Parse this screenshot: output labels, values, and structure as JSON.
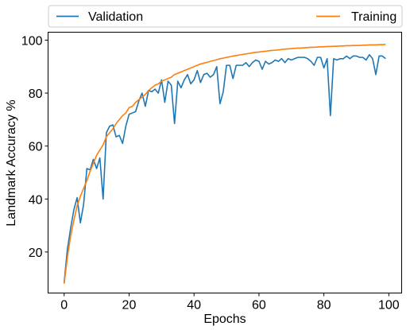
{
  "chart_data": {
    "type": "line",
    "title": "",
    "xlabel": "Epochs",
    "ylabel": "Landmark Accuracy %",
    "xlim": [
      -4.95,
      103.95
    ],
    "ylim": [
      4.5,
      103.0
    ],
    "xticks": [
      0,
      20,
      40,
      60,
      80,
      100
    ],
    "yticks": [
      20,
      40,
      60,
      80,
      100
    ],
    "grid": false,
    "legend": {
      "placement": "top, above plot",
      "entries": [
        "Validation",
        "Training"
      ]
    },
    "series": [
      {
        "name": "Validation",
        "color": "#1f77b4",
        "x": [
          0,
          1,
          2,
          3,
          4,
          5,
          6,
          7,
          8,
          9,
          10,
          11,
          12,
          13,
          14,
          15,
          16,
          17,
          18,
          19,
          20,
          21,
          22,
          23,
          24,
          25,
          26,
          27,
          28,
          29,
          30,
          31,
          32,
          33,
          34,
          35,
          36,
          37,
          38,
          39,
          40,
          41,
          42,
          43,
          44,
          45,
          46,
          47,
          48,
          49,
          50,
          51,
          52,
          53,
          54,
          55,
          56,
          57,
          58,
          59,
          60,
          61,
          62,
          63,
          64,
          65,
          66,
          67,
          68,
          69,
          70,
          71,
          72,
          73,
          74,
          75,
          76,
          77,
          78,
          79,
          80,
          81,
          82,
          83,
          84,
          85,
          86,
          87,
          88,
          89,
          90,
          91,
          92,
          93,
          94,
          95,
          96,
          97,
          98,
          99
        ],
        "y": [
          8.5,
          21,
          29,
          36,
          40.5,
          31,
          38,
          51.5,
          51,
          55,
          51.5,
          55.5,
          40,
          65,
          67.5,
          68,
          63.5,
          64,
          61,
          67.5,
          72,
          72.5,
          73,
          77,
          80,
          75,
          81,
          80.5,
          81.5,
          80,
          85,
          76.5,
          84.5,
          83,
          68.5,
          84.5,
          82,
          85,
          87,
          83.5,
          85,
          88.5,
          84,
          87,
          87.5,
          86,
          87,
          90,
          76,
          80.5,
          90.5,
          90.5,
          85.5,
          90.5,
          90.5,
          90.5,
          91.5,
          90,
          91.5,
          92.5,
          92,
          89,
          92,
          91,
          91.5,
          92.5,
          92,
          93,
          91.5,
          93,
          92.5,
          93,
          93.5,
          93.5,
          93.5,
          93,
          92,
          90.5,
          93.5,
          93.5,
          89.5,
          93,
          71.5,
          93,
          92.5,
          93,
          93,
          94,
          93,
          94,
          94,
          93.5,
          93.5,
          92.5,
          94.5,
          93,
          87,
          94,
          94,
          93
        ]
      },
      {
        "name": "Training",
        "color": "#ff7f0e",
        "x": [
          0,
          1,
          2,
          3,
          4,
          5,
          6,
          7,
          8,
          9,
          10,
          11,
          12,
          13,
          14,
          15,
          16,
          17,
          18,
          19,
          20,
          21,
          22,
          23,
          24,
          25,
          26,
          27,
          28,
          29,
          30,
          31,
          32,
          33,
          34,
          35,
          36,
          37,
          38,
          39,
          40,
          41,
          42,
          43,
          44,
          45,
          46,
          47,
          48,
          49,
          50,
          51,
          52,
          53,
          54,
          55,
          56,
          57,
          58,
          59,
          60,
          61,
          62,
          63,
          64,
          65,
          66,
          67,
          68,
          69,
          70,
          71,
          72,
          73,
          74,
          75,
          76,
          77,
          78,
          79,
          80,
          81,
          82,
          83,
          84,
          85,
          86,
          87,
          88,
          89,
          90,
          91,
          92,
          93,
          94,
          95,
          96,
          97,
          98,
          99
        ],
        "y": [
          8,
          18,
          26,
          32,
          37.5,
          41,
          44,
          47,
          50.5,
          53.5,
          56.5,
          58.5,
          60.5,
          63.5,
          65,
          66.5,
          68.5,
          70,
          71.5,
          72.5,
          74.5,
          75,
          76.5,
          77.5,
          78.5,
          79.5,
          81,
          82,
          83,
          83.5,
          84.5,
          85,
          85.5,
          86,
          87,
          87.5,
          88,
          88.5,
          89,
          89.5,
          90,
          90.5,
          91,
          91.3,
          91.6,
          92,
          92.3,
          92.6,
          93,
          93.2,
          93.5,
          93.7,
          94,
          94.2,
          94.4,
          94.6,
          94.8,
          95,
          95.2,
          95.4,
          95.5,
          95.7,
          95.8,
          96,
          96.1,
          96.2,
          96.3,
          96.5,
          96.6,
          96.7,
          96.8,
          96.9,
          97,
          97,
          97.1,
          97.2,
          97.3,
          97.3,
          97.4,
          97.5,
          97.5,
          97.6,
          97.6,
          97.7,
          97.7,
          97.8,
          97.8,
          97.9,
          97.9,
          98,
          98,
          98,
          98.1,
          98.1,
          98.2,
          98.2,
          98.2,
          98.3,
          98.3,
          98.4
        ]
      }
    ]
  }
}
